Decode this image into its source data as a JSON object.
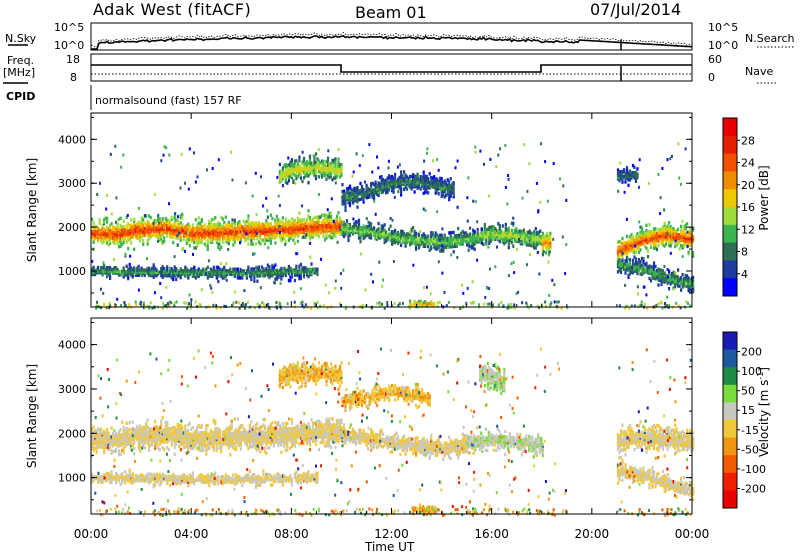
{
  "header": {
    "station": "Adak West (fitACF)",
    "beam": "Beam 01",
    "date": "07/Jul/2014"
  },
  "status_panels": {
    "nsky_label": "N.Sky",
    "nsearch_label": "N.Search",
    "noise_ticks": [
      "10^5",
      "10^0"
    ],
    "freq_label": "Freq.",
    "freq_unit": "[MHz]",
    "freq_ticks": [
      "18",
      "8"
    ],
    "nave_label": "Nave",
    "nave_ticks": [
      "60",
      "0"
    ],
    "cpid_label": "CPID",
    "cpid_text": "normalsound (fast) 157 RF"
  },
  "colors": {
    "power_scale": [
      "#0000ff",
      "#1e3ca0",
      "#2d6e55",
      "#3cb450",
      "#a0dc3c",
      "#f0c800",
      "#f08c00",
      "#f05000",
      "#e61e00",
      "#e60000"
    ],
    "velocity_scale": [
      "#1a1ab4",
      "#1e5aa0",
      "#1e8c46",
      "#78dc3c",
      "#c8c8c0",
      "#f0c83c",
      "#f09614",
      "#f05a00",
      "#f01e00",
      "#e60000"
    ],
    "ground_scatter": "#c0c0b8"
  },
  "chart_data": [
    {
      "type": "heatmap",
      "name": "power",
      "ylabel": "Slant Range [km]",
      "colorbar_label": "Power [dB]",
      "colorbar_ticks": [
        "28",
        "24",
        "20",
        "16",
        "12",
        "8",
        "4"
      ],
      "colorbar_range": [
        0,
        32
      ],
      "ylim": [
        180,
        4600
      ],
      "yticks": [
        "4000",
        "3000",
        "2000",
        "1000"
      ],
      "xlim": [
        0,
        24
      ],
      "bands": [
        {
          "t": [
            0,
            10
          ],
          "r": [
            [
              0,
              1870
            ],
            [
              1,
              1840
            ],
            [
              2,
              1940
            ],
            [
              3,
              1970
            ],
            [
              4,
              1860
            ],
            [
              5,
              1870
            ],
            [
              6,
              1900
            ],
            [
              7,
              1920
            ],
            [
              8,
              1960
            ],
            [
              9,
              2000
            ],
            [
              10,
              2020
            ]
          ],
          "w": 230,
          "p": 26
        },
        {
          "t": [
            10,
            15.5
          ],
          "r": [
            [
              10,
              1960
            ],
            [
              11,
              1900
            ],
            [
              12,
              1780
            ],
            [
              13,
              1700
            ],
            [
              14,
              1660
            ],
            [
              15,
              1720
            ],
            [
              15.5,
              1760
            ]
          ],
          "w": 160,
          "p": 13
        },
        {
          "t": [
            15.5,
            18
          ],
          "r": [
            [
              15.5,
              1800
            ],
            [
              16,
              1850
            ],
            [
              17,
              1800
            ],
            [
              18,
              1700
            ]
          ],
          "w": 180,
          "p": 15
        },
        {
          "t": [
            7.5,
            10
          ],
          "r": [
            [
              7.5,
              3150
            ],
            [
              8,
              3300
            ],
            [
              9,
              3350
            ],
            [
              10,
              3300
            ]
          ],
          "w": 200,
          "p": 17
        },
        {
          "t": [
            10,
            14.5
          ],
          "r": [
            [
              10,
              2650
            ],
            [
              11,
              2800
            ],
            [
              12,
              3000
            ],
            [
              13,
              3050
            ],
            [
              14,
              2900
            ],
            [
              14.5,
              2850
            ]
          ],
          "w": 180,
          "p": 9
        },
        {
          "t": [
            0,
            9
          ],
          "r": [
            [
              0,
              1000
            ],
            [
              2,
              980
            ],
            [
              4,
              960
            ],
            [
              6,
              960
            ],
            [
              8,
              980
            ],
            [
              9,
              1000
            ]
          ],
          "w": 110,
          "p": 10
        },
        {
          "t": [
            21,
            24
          ],
          "r": [
            [
              21,
              1450
            ],
            [
              22,
              1700
            ],
            [
              23,
              1820
            ],
            [
              24,
              1730
            ]
          ],
          "w": 220,
          "p": 25
        },
        {
          "t": [
            21,
            24
          ],
          "r": [
            [
              21,
              1150
            ],
            [
              22,
              1050
            ],
            [
              23,
              850
            ],
            [
              24,
              700
            ]
          ],
          "w": 160,
          "p": 11
        },
        {
          "t": [
            12.7,
            13.7
          ],
          "r": [
            [
              12.7,
              260
            ],
            [
              13.7,
              240
            ]
          ],
          "w": 60,
          "p": 22
        },
        {
          "t": [
            18,
            18.3
          ],
          "r": [
            [
              18,
              1650
            ],
            [
              18.3,
              1650
            ]
          ],
          "w": 220,
          "p": 22
        },
        {
          "t": [
            21,
            21.8
          ],
          "r": [
            [
              21,
              3150
            ],
            [
              21.8,
              3180
            ]
          ],
          "w": 140,
          "p": 8
        }
      ],
      "gaps_ut": [
        [
          19,
          21
        ]
      ]
    },
    {
      "type": "heatmap",
      "name": "velocity",
      "ylabel": "Slant Range [km]",
      "colorbar_label": "Velocity [m s^-1]",
      "colorbar_ticks": [
        "200",
        "100",
        "50",
        "15",
        "-15",
        "-50",
        "-100",
        "-200"
      ],
      "colorbar_range": [
        -250,
        250
      ],
      "ylim": [
        180,
        4600
      ],
      "yticks": [
        "4000",
        "3000",
        "2000",
        "1000"
      ],
      "xlim": [
        0,
        24
      ],
      "bands": [
        {
          "t": [
            0,
            10
          ],
          "r": [
            [
              0,
              1870
            ],
            [
              1,
              1840
            ],
            [
              2,
              1940
            ],
            [
              3,
              1970
            ],
            [
              4,
              1860
            ],
            [
              5,
              1870
            ],
            [
              6,
              1900
            ],
            [
              7,
              1920
            ],
            [
              8,
              1960
            ],
            [
              9,
              2000
            ],
            [
              10,
              2020
            ]
          ],
          "w": 250,
          "v": 0
        },
        {
          "t": [
            10,
            15
          ],
          "r": [
            [
              10,
              1960
            ],
            [
              11,
              1900
            ],
            [
              12,
              1780
            ],
            [
              13,
              1700
            ],
            [
              14,
              1660
            ],
            [
              15,
              1720
            ]
          ],
          "w": 160,
          "v": 0
        },
        {
          "t": [
            15,
            18
          ],
          "r": [
            [
              15,
              1800
            ],
            [
              16,
              1850
            ],
            [
              17,
              1800
            ],
            [
              18,
              1700
            ]
          ],
          "w": 170,
          "v": 35
        },
        {
          "t": [
            7.5,
            10
          ],
          "r": [
            [
              7.5,
              3250
            ],
            [
              8,
              3350
            ],
            [
              9,
              3350
            ],
            [
              10,
              3300
            ]
          ],
          "w": 200,
          "v": -40
        },
        {
          "t": [
            10,
            13.5
          ],
          "r": [
            [
              10,
              2700
            ],
            [
              11,
              2800
            ],
            [
              12,
              2950
            ],
            [
              13,
              2850
            ],
            [
              13.5,
              2750
            ]
          ],
          "w": 150,
          "v": -40
        },
        {
          "t": [
            0,
            9
          ],
          "r": [
            [
              0,
              1000
            ],
            [
              2,
              980
            ],
            [
              4,
              960
            ],
            [
              6,
              960
            ],
            [
              8,
              980
            ],
            [
              9,
              1000
            ]
          ],
          "w": 100,
          "v": 0
        },
        {
          "t": [
            21,
            24
          ],
          "r": [
            [
              21,
              1800
            ],
            [
              22,
              1900
            ],
            [
              23,
              1880
            ],
            [
              24,
              1800
            ]
          ],
          "w": 220,
          "v": 0
        },
        {
          "t": [
            21,
            24
          ],
          "r": [
            [
              21,
              1150
            ],
            [
              22,
              1050
            ],
            [
              23,
              850
            ],
            [
              24,
              700
            ]
          ],
          "w": 150,
          "v": 0
        },
        {
          "t": [
            12.8,
            13.8
          ],
          "r": [
            [
              12.8,
              280
            ],
            [
              13.8,
              250
            ]
          ],
          "w": 70,
          "v": -70
        },
        {
          "t": [
            15.5,
            16.5
          ],
          "r": [
            [
              15.5,
              3350
            ],
            [
              16.5,
              3150
            ]
          ],
          "w": 200,
          "v": 40
        }
      ],
      "gaps_ut": [
        [
          19,
          21
        ]
      ]
    }
  ],
  "x_axis": {
    "ticks": [
      "00:00",
      "04:00",
      "08:00",
      "12:00",
      "16:00",
      "20:00",
      "00:00"
    ],
    "tick_hours": [
      0,
      4,
      8,
      12,
      16,
      20,
      24
    ],
    "label": "Time UT"
  }
}
